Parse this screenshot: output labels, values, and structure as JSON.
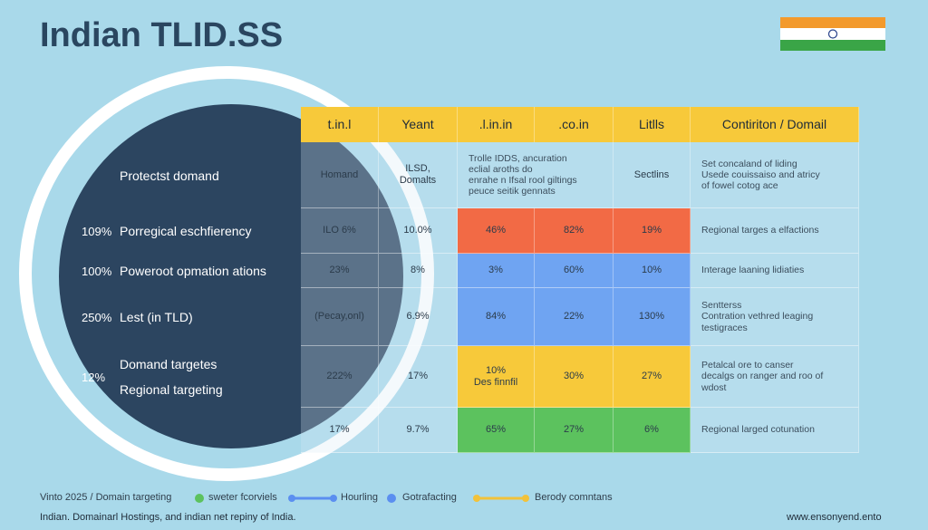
{
  "header": {
    "title": "Indian TLID.SS"
  },
  "table": {
    "columns": [
      "t.in.l",
      "Yeant",
      ".l.in.in",
      ".co.in",
      "Litlls",
      "Contiriton / Domail"
    ],
    "rows": [
      {
        "percent": null,
        "label": [
          "Protectst domand"
        ],
        "cells": [
          [
            "Homand"
          ],
          [
            "ILSD,",
            "Domalts"
          ],
          [
            "Trolle IDDS, ancuration",
            "eclial aroths do",
            "enrahe n Ifsal rool giltings",
            "peuce seitik gennats"
          ],
          [
            "Sectlins"
          ],
          [
            "Set concaland of liding",
            "Usede couissaiso and atricy",
            "of fowel cotog ace"
          ]
        ],
        "highlight": null
      },
      {
        "percent": "109%",
        "label": [
          "Porregical eschfierency"
        ],
        "cells": [
          [
            "ILO 6%"
          ],
          [
            "10.0%"
          ],
          [
            "46%"
          ],
          [
            "82%"
          ],
          [
            "19%"
          ],
          [
            "Regional targes a elfactions"
          ]
        ],
        "highlight": "#f26a45"
      },
      {
        "percent": "100%",
        "label": [
          "Poweroot opmation ations"
        ],
        "cells": [
          [
            "23%"
          ],
          [
            "8%"
          ],
          [
            "3%"
          ],
          [
            "60%"
          ],
          [
            "10%"
          ],
          [
            "Interage laaning lidiaties"
          ]
        ],
        "highlight": "#6fa4f2"
      },
      {
        "percent": "250%",
        "label": [
          "Lest (in TLD)"
        ],
        "cells": [
          [
            "(Pecay,onl)"
          ],
          [
            "6.9%"
          ],
          [
            "84%"
          ],
          [
            "22%"
          ],
          [
            "130%"
          ],
          [
            "Sentterss",
            "Contration vethred leaging",
            "testigraces"
          ]
        ],
        "highlight": "#6fa4f2"
      },
      {
        "percent": "12%",
        "label": [
          "Domand targetes",
          "Regional targeting"
        ],
        "cells": [
          [
            "222%"
          ],
          [
            "17%"
          ],
          [
            "10%",
            "Des finnfil"
          ],
          [
            "30%"
          ],
          [
            "27%"
          ],
          [
            "Petalcal ore to canser",
            "decalgs on ranger and roo of",
            "wdost"
          ]
        ],
        "highlight": "#f7c93a"
      },
      {
        "percent": null,
        "label": [],
        "cells": [
          [
            "17%"
          ],
          [
            "9.7%"
          ],
          [
            "65%"
          ],
          [
            "27%"
          ],
          [
            "6%"
          ],
          [
            "Regional larged cotunation"
          ]
        ],
        "highlight": "#5cc25e"
      }
    ]
  },
  "legend": [
    "Vinto 2025 / Domain targeting",
    "sweter fcorviels",
    "Hourling",
    "Gotrafacting",
    "Berody comntans"
  ],
  "footer": {
    "note": "Indian. Domainarl Hostings, and indian net repiny of India.",
    "url": "www.ensonyend.ento"
  }
}
